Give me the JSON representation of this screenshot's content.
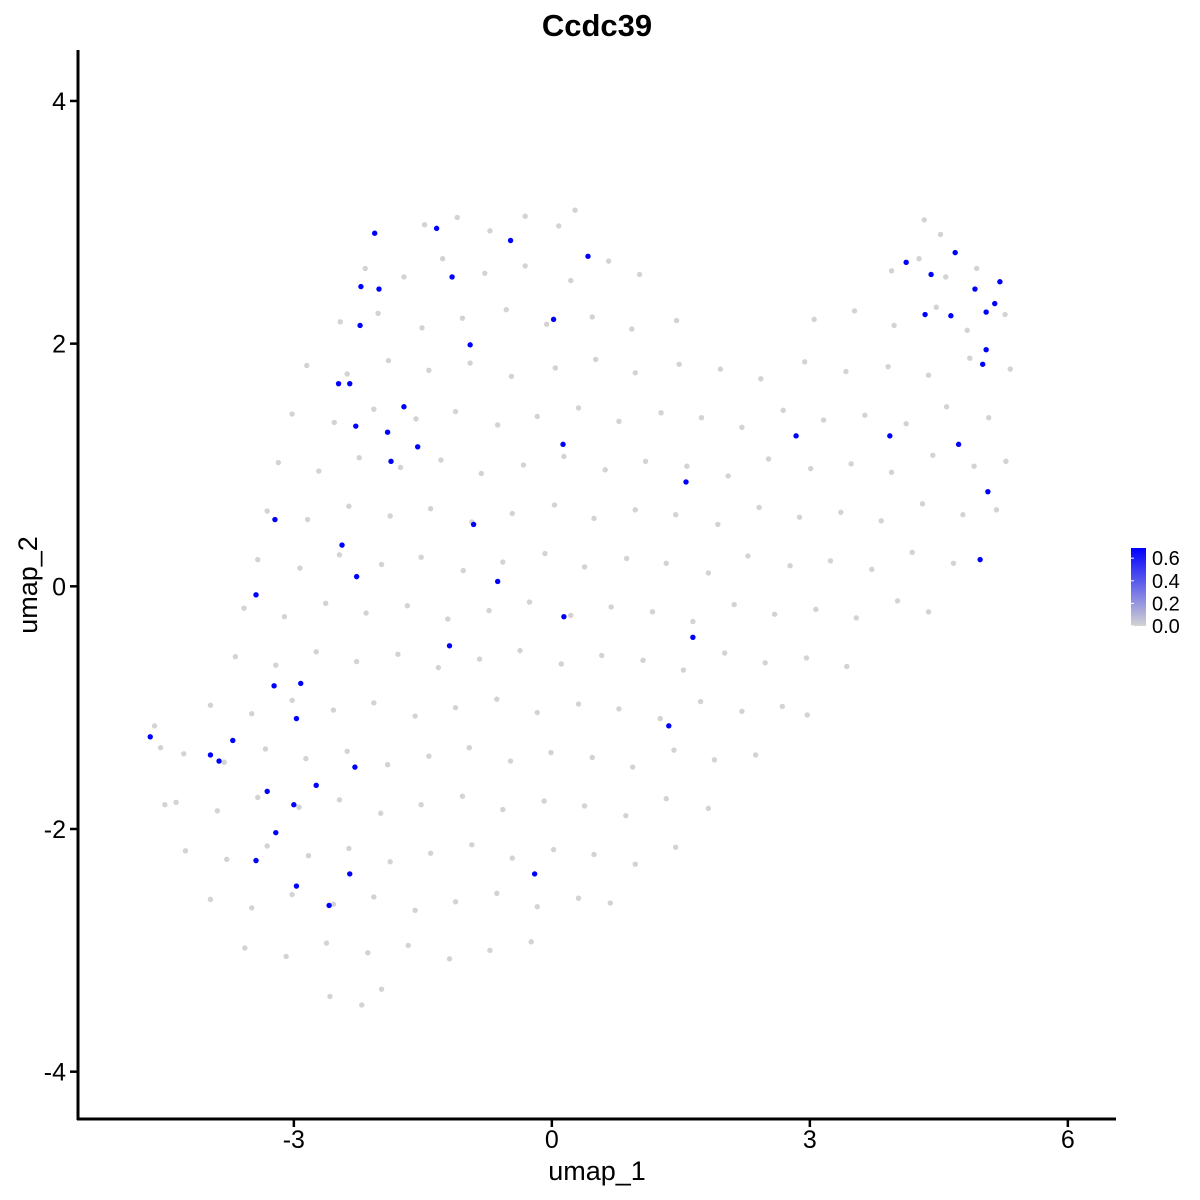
{
  "chart_data": {
    "type": "scatter",
    "title": "Ccdc39",
    "x_label": "umap_1",
    "y_label": "umap_2",
    "xlim": [
      -5.51,
      6.56
    ],
    "ylim": [
      -4.39,
      4.42
    ],
    "xticks": [
      -3,
      0,
      3,
      6
    ],
    "yticks": [
      -4,
      -2,
      0,
      2,
      4
    ],
    "grid": false,
    "low_color": "#d3d3d3",
    "high_color": "#0000ff",
    "color_range": [
      0,
      0.69
    ],
    "colorbar_ticks": [
      {
        "value": 0,
        "label": "0.0"
      },
      0.2,
      0.4,
      0.6
    ],
    "legend_position": "right",
    "x": [
      -1.48,
      -1.1,
      -0.72,
      -0.31,
      0.08,
      0.27,
      4.33,
      4.52,
      -2.17,
      -1.72,
      -1.27,
      -0.78,
      -0.31,
      0.22,
      0.66,
      1.02,
      3.95,
      4.27,
      4.58,
      4.94,
      -2.46,
      -2.02,
      -1.51,
      -1.04,
      -0.53,
      -0.06,
      0.47,
      0.93,
      1.45,
      3.05,
      3.52,
      3.98,
      4.47,
      4.83,
      5.27,
      -2.85,
      -2.38,
      -1.9,
      -1.43,
      -0.95,
      -0.47,
      0.04,
      0.51,
      0.97,
      1.48,
      1.96,
      2.43,
      2.94,
      3.42,
      3.91,
      4.38,
      4.86,
      5.33,
      -3.02,
      -2.53,
      -2.07,
      -1.58,
      -1.12,
      -0.63,
      -0.17,
      0.31,
      0.78,
      1.27,
      1.74,
      2.21,
      2.69,
      3.16,
      3.64,
      4.12,
      4.59,
      5.08,
      -3.18,
      -2.71,
      -2.24,
      -1.76,
      -1.29,
      -0.82,
      -0.33,
      0.14,
      0.62,
      1.09,
      1.57,
      2.05,
      2.52,
      3.01,
      3.48,
      3.95,
      4.43,
      4.91,
      5.28,
      -3.31,
      -2.84,
      -2.36,
      -1.88,
      -1.41,
      -0.93,
      -0.46,
      0.03,
      0.49,
      0.97,
      1.44,
      1.93,
      2.41,
      2.88,
      3.36,
      3.83,
      4.31,
      4.78,
      5.17,
      -3.42,
      -2.93,
      -2.47,
      -1.98,
      -1.52,
      -1.03,
      -0.57,
      -0.08,
      0.38,
      0.87,
      1.33,
      1.82,
      2.28,
      2.77,
      3.24,
      3.72,
      4.19,
      4.67,
      -3.58,
      -3.11,
      -2.63,
      -2.16,
      -1.68,
      -1.21,
      -0.73,
      -0.26,
      0.22,
      0.69,
      1.17,
      1.64,
      2.12,
      2.59,
      3.07,
      3.54,
      4.02,
      4.38,
      -3.68,
      -3.21,
      -2.74,
      -2.27,
      -1.79,
      -1.32,
      -0.84,
      -0.37,
      0.11,
      0.58,
      1.06,
      1.53,
      2.01,
      2.48,
      2.96,
      3.43,
      -3.97,
      -3.49,
      -3.02,
      -2.54,
      -2.07,
      -1.59,
      -1.12,
      -0.64,
      -0.17,
      0.31,
      0.78,
      1.26,
      1.73,
      2.21,
      2.68,
      2.97,
      -4.28,
      -3.81,
      -3.33,
      -2.86,
      -2.38,
      -1.91,
      -1.43,
      -0.96,
      -0.48,
      -0.01,
      0.47,
      0.94,
      1.42,
      1.89,
      2.37,
      -4.37,
      -3.89,
      -3.42,
      -2.94,
      -2.47,
      -1.99,
      -1.52,
      -1.04,
      -0.57,
      -0.09,
      0.38,
      0.86,
      1.33,
      1.82,
      -4.26,
      -3.78,
      -3.31,
      -2.83,
      -2.36,
      -1.88,
      -1.41,
      -0.93,
      -0.46,
      0.02,
      0.49,
      0.97,
      1.44,
      -3.97,
      -3.49,
      -3.02,
      -2.54,
      -2.07,
      -1.59,
      -1.12,
      -0.64,
      -0.17,
      0.31,
      0.68,
      -3.57,
      -3.09,
      -2.62,
      -2.14,
      -1.67,
      -1.19,
      -0.72,
      -0.24,
      -2.58,
      -2.21,
      -1.98,
      -4.62,
      -4.55,
      -4.5,
      -2.06,
      -1.34,
      -0.48,
      0.42,
      -1.16,
      -2.22,
      -2.01,
      0.02,
      -2.23,
      -0.95,
      -2.48,
      -2.35,
      -1.72,
      -2.28,
      -1.91,
      -1.56,
      0.13,
      -1.87,
      1.56,
      -3.22,
      -0.91,
      -2.44,
      -2.27,
      -0.63,
      -3.44,
      0.14,
      -1.19,
      1.64,
      -3.23,
      -2.92,
      -2.97,
      1.36,
      -4.67,
      -3.71,
      -3.97,
      -3.87,
      -2.29,
      -2.74,
      -3.31,
      -3.0,
      -3.21,
      -3.44,
      -2.35,
      -0.2,
      -2.97,
      -2.59,
      4.12,
      4.69,
      4.41,
      5.21,
      4.92,
      5.15,
      4.34,
      4.64,
      5.05,
      5.05,
      5.01,
      2.84,
      3.93,
      4.73,
      5.07,
      4.98
    ],
    "y": [
      2.98,
      3.04,
      2.93,
      3.05,
      2.97,
      3.1,
      3.02,
      2.9,
      2.62,
      2.55,
      2.7,
      2.58,
      2.64,
      2.52,
      2.68,
      2.57,
      2.6,
      2.7,
      2.55,
      2.62,
      2.18,
      2.25,
      2.13,
      2.21,
      2.28,
      2.16,
      2.22,
      2.12,
      2.19,
      2.2,
      2.27,
      2.15,
      2.3,
      2.11,
      2.24,
      1.82,
      1.75,
      1.86,
      1.78,
      1.84,
      1.73,
      1.8,
      1.87,
      1.76,
      1.83,
      1.79,
      1.71,
      1.85,
      1.77,
      1.81,
      1.74,
      1.88,
      1.79,
      1.42,
      1.35,
      1.46,
      1.38,
      1.44,
      1.33,
      1.4,
      1.47,
      1.36,
      1.43,
      1.39,
      1.31,
      1.45,
      1.37,
      1.41,
      1.34,
      1.48,
      1.39,
      1.02,
      0.95,
      1.06,
      0.98,
      1.04,
      0.93,
      1.0,
      1.07,
      0.96,
      1.03,
      0.99,
      0.91,
      1.05,
      0.97,
      1.01,
      0.94,
      1.08,
      0.99,
      1.03,
      0.62,
      0.55,
      0.66,
      0.58,
      0.64,
      0.53,
      0.6,
      0.67,
      0.56,
      0.63,
      0.59,
      0.51,
      0.65,
      0.57,
      0.61,
      0.54,
      0.68,
      0.59,
      0.63,
      0.22,
      0.15,
      0.26,
      0.18,
      0.24,
      0.13,
      0.2,
      0.27,
      0.16,
      0.23,
      0.19,
      0.11,
      0.25,
      0.17,
      0.21,
      0.14,
      0.28,
      0.19,
      -0.18,
      -0.25,
      -0.14,
      -0.22,
      -0.16,
      -0.27,
      -0.2,
      -0.13,
      -0.24,
      -0.17,
      -0.21,
      -0.29,
      -0.15,
      -0.23,
      -0.19,
      -0.26,
      -0.12,
      -0.21,
      -0.58,
      -0.65,
      -0.54,
      -0.62,
      -0.56,
      -0.67,
      -0.6,
      -0.53,
      -0.64,
      -0.57,
      -0.61,
      -0.69,
      -0.55,
      -0.63,
      -0.59,
      -0.66,
      -0.98,
      -1.05,
      -0.94,
      -1.02,
      -0.96,
      -1.07,
      -1.0,
      -0.93,
      -1.04,
      -0.97,
      -1.01,
      -1.09,
      -0.95,
      -1.03,
      -0.99,
      -1.06,
      -1.38,
      -1.45,
      -1.34,
      -1.42,
      -1.36,
      -1.47,
      -1.4,
      -1.33,
      -1.44,
      -1.37,
      -1.41,
      -1.49,
      -1.35,
      -1.43,
      -1.39,
      -1.78,
      -1.85,
      -1.74,
      -1.82,
      -1.76,
      -1.87,
      -1.8,
      -1.73,
      -1.84,
      -1.77,
      -1.81,
      -1.89,
      -1.75,
      -1.83,
      -2.18,
      -2.25,
      -2.14,
      -2.22,
      -2.16,
      -2.27,
      -2.2,
      -2.13,
      -2.24,
      -2.17,
      -2.21,
      -2.29,
      -2.15,
      -2.58,
      -2.65,
      -2.54,
      -2.62,
      -2.56,
      -2.67,
      -2.6,
      -2.53,
      -2.64,
      -2.57,
      -2.61,
      -2.98,
      -3.05,
      -2.94,
      -3.02,
      -2.96,
      -3.07,
      -3.0,
      -2.93,
      -3.38,
      -3.45,
      -3.32,
      -1.15,
      -1.33,
      -1.8,
      2.91,
      2.95,
      2.85,
      2.72,
      2.55,
      2.47,
      2.45,
      2.2,
      2.15,
      1.99,
      1.67,
      1.67,
      1.48,
      1.32,
      1.27,
      1.15,
      1.17,
      1.03,
      0.86,
      0.55,
      0.51,
      0.34,
      0.08,
      0.04,
      -0.07,
      -0.25,
      -0.49,
      -0.42,
      -0.82,
      -0.8,
      -1.09,
      -1.15,
      -1.24,
      -1.27,
      -1.39,
      -1.44,
      -1.49,
      -1.64,
      -1.69,
      -1.8,
      -2.03,
      -2.26,
      -2.37,
      -2.37,
      -2.47,
      -2.63,
      2.67,
      2.75,
      2.57,
      2.51,
      2.45,
      2.33,
      2.24,
      2.23,
      2.26,
      1.95,
      1.83,
      1.24,
      1.24,
      1.17,
      0.78,
      0.22
    ],
    "values": [
      0,
      0,
      0,
      0,
      0,
      0,
      0,
      0,
      0,
      0,
      0,
      0,
      0,
      0,
      0,
      0,
      0,
      0,
      0,
      0,
      0,
      0,
      0,
      0,
      0,
      0,
      0,
      0,
      0,
      0,
      0,
      0,
      0,
      0,
      0,
      0,
      0,
      0,
      0,
      0,
      0,
      0,
      0,
      0,
      0,
      0,
      0,
      0,
      0,
      0,
      0,
      0,
      0,
      0,
      0,
      0,
      0,
      0,
      0,
      0,
      0,
      0,
      0,
      0,
      0,
      0,
      0,
      0,
      0,
      0,
      0,
      0,
      0,
      0,
      0,
      0,
      0,
      0,
      0,
      0,
      0,
      0,
      0,
      0,
      0,
      0,
      0,
      0,
      0,
      0,
      0,
      0,
      0,
      0,
      0,
      0,
      0,
      0,
      0,
      0,
      0,
      0,
      0,
      0,
      0,
      0,
      0,
      0,
      0,
      0,
      0,
      0,
      0,
      0,
      0,
      0,
      0,
      0,
      0,
      0,
      0,
      0,
      0,
      0,
      0,
      0,
      0,
      0,
      0,
      0,
      0,
      0,
      0,
      0,
      0,
      0,
      0,
      0,
      0,
      0,
      0,
      0,
      0,
      0,
      0,
      0,
      0,
      0,
      0,
      0,
      0,
      0,
      0,
      0,
      0,
      0,
      0,
      0,
      0,
      0,
      0,
      0,
      0,
      0,
      0,
      0,
      0,
      0,
      0,
      0,
      0,
      0,
      0,
      0,
      0,
      0,
      0,
      0,
      0,
      0,
      0,
      0,
      0,
      0,
      0,
      0,
      0,
      0,
      0,
      0,
      0,
      0,
      0,
      0,
      0,
      0,
      0,
      0,
      0,
      0,
      0,
      0,
      0,
      0,
      0,
      0,
      0,
      0,
      0,
      0,
      0,
      0,
      0,
      0,
      0,
      0,
      0,
      0,
      0,
      0,
      0,
      0,
      0,
      0,
      0,
      0,
      0,
      0,
      0,
      0,
      0,
      0,
      0,
      0,
      0,
      0,
      0,
      0,
      0,
      0,
      0,
      0,
      0,
      0,
      0.69,
      0.69,
      0.69,
      0.69,
      0.69,
      0.69,
      0.69,
      0.69,
      0.69,
      0.69,
      0.69,
      0.69,
      0.69,
      0.69,
      0.69,
      0.69,
      0.69,
      0.69,
      0.69,
      0.69,
      0.69,
      0.69,
      0.69,
      0.69,
      0.69,
      0.69,
      0.69,
      0.69,
      0.69,
      0.69,
      0.69,
      0.69,
      0.69,
      0.69,
      0.69,
      0.69,
      0.69,
      0.69,
      0.69,
      0.69,
      0.69,
      0.69,
      0.69,
      0.69,
      0.69,
      0.69,
      0.69,
      0.69,
      0.69,
      0.69,
      0.69,
      0.69,
      0.69,
      0.69,
      0.69,
      0.69,
      0.69,
      0.69,
      0.69,
      0.69,
      0.69,
      0.69
    ]
  }
}
